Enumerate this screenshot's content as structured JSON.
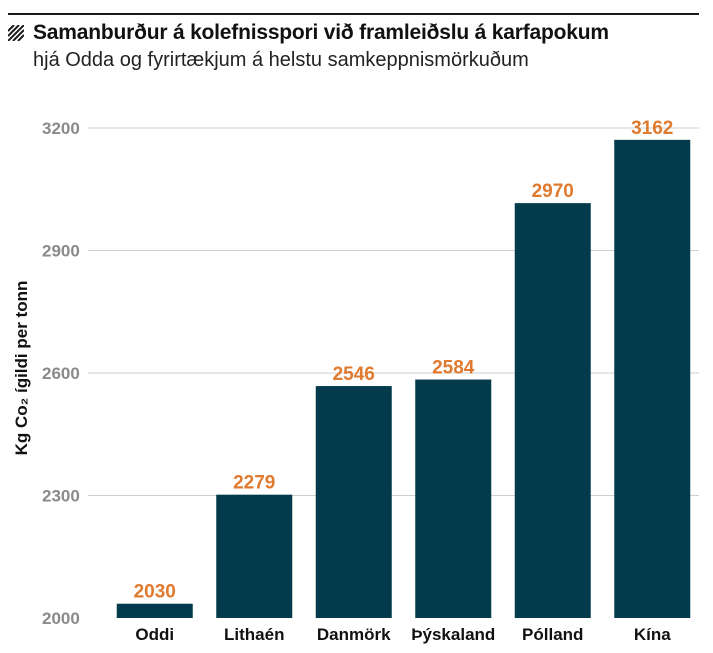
{
  "chart_data": {
    "type": "bar",
    "title": "Samanburður á kolefnisspori við framleiðslu á karfapokum",
    "subtitle": "hjá Odda og fyrirtækjum á helstu samkeppnismörkuðum",
    "ylabel": "Kg Co₂ ígildi per tonn",
    "xlabel": "",
    "categories": [
      "Oddi",
      "Lithaén",
      "Danmörk",
      "Þýskaland",
      "Pólland",
      "Kína"
    ],
    "values": [
      2030,
      2279,
      2546,
      2584,
      2970,
      3162
    ],
    "bar_tops": [
      2035,
      2302,
      2568,
      2584,
      3016,
      3171
    ],
    "ylim": [
      2000,
      3200
    ],
    "yticks": [
      2000,
      2300,
      2600,
      2900,
      3200
    ],
    "grid": true,
    "legend": "none",
    "colors": {
      "bar": "#033a4c",
      "value_label": "#e07a2e",
      "tick_label": "#8a8a8a",
      "grid": "#cfcfcf"
    }
  }
}
